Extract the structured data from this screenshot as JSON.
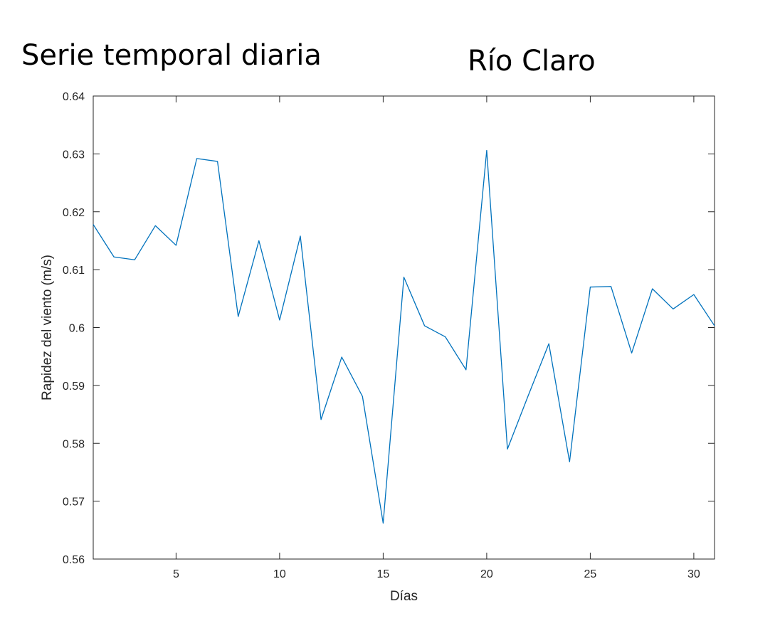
{
  "titles": {
    "left": "Serie temporal diaria",
    "right": "Río Claro"
  },
  "chart_data": {
    "type": "line",
    "xlabel": "Días",
    "ylabel": "Rapidez del viento (m/s)",
    "xlim": [
      1,
      31
    ],
    "ylim": [
      0.56,
      0.64
    ],
    "xticks": [
      5,
      10,
      15,
      20,
      25,
      30
    ],
    "xtick_labels": [
      "5",
      "10",
      "15",
      "20",
      "25",
      "30"
    ],
    "yticks": [
      0.56,
      0.57,
      0.58,
      0.59,
      0.6,
      0.61,
      0.62,
      0.63,
      0.64
    ],
    "ytick_labels": [
      "0.56",
      "0.57",
      "0.58",
      "0.59",
      "0.6",
      "0.61",
      "0.62",
      "0.63",
      "0.64"
    ],
    "grid": false,
    "series": [
      {
        "color": "#0072bd",
        "x": [
          1,
          2,
          3,
          4,
          5,
          6,
          7,
          8,
          9,
          10,
          11,
          12,
          13,
          14,
          15,
          16,
          17,
          18,
          19,
          20,
          21,
          22,
          23,
          24,
          25,
          26,
          27,
          28,
          29,
          30,
          31
        ],
        "values": [
          0.6178,
          0.6122,
          0.6117,
          0.6176,
          0.6142,
          0.6292,
          0.6287,
          0.6019,
          0.615,
          0.6013,
          0.6158,
          0.5841,
          0.5949,
          0.5881,
          0.5662,
          0.6087,
          0.6003,
          0.5984,
          0.5927,
          0.6306,
          0.579,
          0.5882,
          0.5972,
          0.5768,
          0.607,
          0.6071,
          0.5956,
          0.6067,
          0.6032,
          0.6057,
          0.6003
        ]
      }
    ]
  }
}
